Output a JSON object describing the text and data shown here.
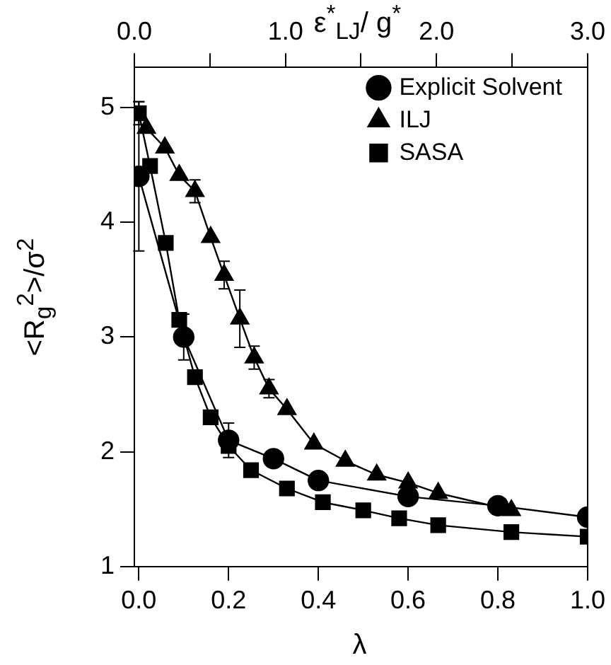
{
  "chart_data": {
    "type": "line",
    "xlabel": "λ",
    "ylabel": "<R$_{g}$$^{2}$>/σ$^{2}$",
    "x2label": "ε$^{*}$$_{LJ}$/ g$^{*}$",
    "xlim": [
      -0.01,
      1.0
    ],
    "xticks": [
      {
        "value": 0,
        "label": "0.0"
      },
      {
        "value": 0.2,
        "label": "0.2"
      },
      {
        "value": 0.4,
        "label": "0.4"
      },
      {
        "value": 0.6,
        "label": "0.6"
      },
      {
        "value": 0.8,
        "label": "0.8"
      },
      {
        "value": 1.0,
        "label": "1.0"
      }
    ],
    "x2lim": [
      0,
      3
    ],
    "x2ticks": [
      {
        "value": 0,
        "label": "0.0"
      },
      {
        "value": 0.5,
        "label": null
      },
      {
        "value": 1,
        "label": "1.0"
      },
      {
        "value": 1.5,
        "label": null
      },
      {
        "value": 2,
        "label": "2.0"
      },
      {
        "value": 2.5,
        "label": null
      },
      {
        "value": 3,
        "label": "3.0"
      }
    ],
    "ylim": [
      1,
      5.35
    ],
    "yticks": [
      1,
      2,
      3,
      4,
      5
    ],
    "grid": false,
    "legend": "top right",
    "line_style": "solid",
    "series": [
      {
        "name": "Explicit Solvent",
        "color": "#000000",
        "marker": "circle",
        "x": [
          0,
          0.1,
          0.2,
          0.3,
          0.4,
          0.6,
          0.8,
          1.0
        ],
        "values": [
          4.4,
          3.0,
          2.1,
          1.94,
          1.75,
          1.61,
          1.53,
          1.43
        ],
        "errors": [
          0.65,
          0.2,
          0.15,
          null,
          null,
          null,
          null,
          null
        ]
      },
      {
        "name": "ILJ",
        "color": "#000000",
        "marker": "triangle",
        "x": [
          0.017,
          0.058,
          0.09,
          0.125,
          0.16,
          0.19,
          0.225,
          0.257,
          0.29,
          0.33,
          0.39,
          0.46,
          0.53,
          0.6,
          0.667,
          0.83
        ],
        "values": [
          4.82,
          4.65,
          4.41,
          4.27,
          3.87,
          3.54,
          3.16,
          2.82,
          2.55,
          2.37,
          2.07,
          1.92,
          1.8,
          1.73,
          1.64,
          1.49
        ],
        "errors": [
          null,
          null,
          null,
          0.1,
          null,
          0.12,
          0.25,
          0.1,
          0.08,
          null,
          null,
          null,
          null,
          null,
          null,
          null
        ]
      },
      {
        "name": "SASA",
        "color": "#000000",
        "marker": "square",
        "x": [
          0,
          0.025,
          0.06,
          0.09,
          0.125,
          0.16,
          0.2,
          0.25,
          0.33,
          0.41,
          0.5,
          0.58,
          0.667,
          0.83,
          1.0
        ],
        "values": [
          4.95,
          4.49,
          3.82,
          3.15,
          2.65,
          2.3,
          2.05,
          1.84,
          1.68,
          1.56,
          1.49,
          1.42,
          1.36,
          1.3,
          1.26
        ],
        "errors": [
          0.1,
          null,
          null,
          null,
          null,
          null,
          null,
          null,
          null,
          null,
          null,
          null,
          null,
          null,
          null
        ]
      }
    ]
  }
}
